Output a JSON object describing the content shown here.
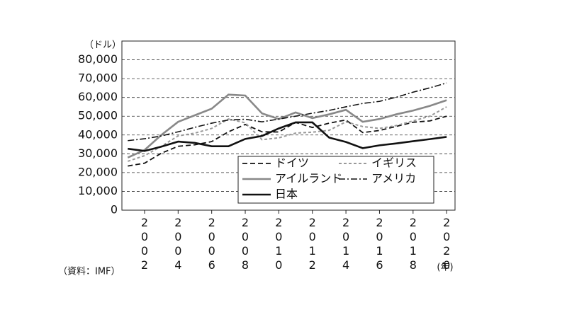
{
  "chart_data": {
    "type": "line",
    "y_unit_label": "（ドル）",
    "x_unit_label": "(年)",
    "source": "（資料：IMF）",
    "x": [
      2001,
      2002,
      2003,
      2004,
      2005,
      2006,
      2007,
      2008,
      2009,
      2010,
      2011,
      2012,
      2013,
      2014,
      2015,
      2016,
      2017,
      2018,
      2019,
      2020
    ],
    "series": [
      {
        "name": "ドイツ",
        "color": "#111111",
        "style": "dashed",
        "values": [
          23500,
          25000,
          30300,
          34000,
          34800,
          36500,
          41700,
          45600,
          41700,
          41600,
          46700,
          44000,
          46300,
          48000,
          41300,
          42400,
          44600,
          46800,
          47500,
          50000
        ]
      },
      {
        "name": "イギリス",
        "color": "#999999",
        "style": "dotted",
        "values": [
          26000,
          29000,
          34000,
          39500,
          41000,
          43500,
          48500,
          46500,
          37500,
          38500,
          41000,
          41500,
          42500,
          47000,
          44500,
          43500,
          45000,
          47500,
          50000,
          55000
        ]
      },
      {
        "name": "アイルランド",
        "color": "#888888",
        "style": "solid",
        "values": [
          28000,
          32000,
          40000,
          47000,
          50500,
          54000,
          61500,
          61000,
          51500,
          48500,
          52000,
          49000,
          51000,
          53400,
          47000,
          48500,
          51000,
          53000,
          55500,
          58500
        ]
      },
      {
        "name": "アメリカ",
        "color": "#111111",
        "style": "dashdot",
        "values": [
          37000,
          38000,
          39500,
          41700,
          44100,
          46300,
          48000,
          48400,
          47000,
          48500,
          50000,
          51600,
          53100,
          55000,
          56800,
          57900,
          60100,
          62800,
          65100,
          67700
        ]
      },
      {
        "name": "日本",
        "color": "#111111",
        "style": "solid",
        "values": [
          32700,
          31500,
          33800,
          36500,
          35800,
          34000,
          34000,
          37900,
          39500,
          43500,
          46700,
          46700,
          38600,
          36300,
          33000,
          34500,
          35500,
          36700,
          37800,
          39000
        ]
      }
    ],
    "xlim": [
      2000.65,
      2020.5
    ],
    "xticks": [
      2002,
      2004,
      2006,
      2008,
      2010,
      2012,
      2014,
      2016,
      2018,
      2020
    ],
    "ylim": [
      0,
      90000
    ],
    "yticks": [
      0,
      {
        "value": 10000,
        "label": "10,000"
      },
      {
        "value": 20000,
        "label": "20,000"
      },
      {
        "value": 30000,
        "label": "30,000"
      },
      {
        "value": 40000,
        "label": "40,000"
      },
      {
        "value": 50000,
        "label": "50,000"
      },
      {
        "value": 60000,
        "label": "60,000"
      },
      {
        "value": 70000,
        "label": "70,000"
      },
      {
        "value": 80000,
        "label": "80,000"
      }
    ],
    "grid": true
  }
}
